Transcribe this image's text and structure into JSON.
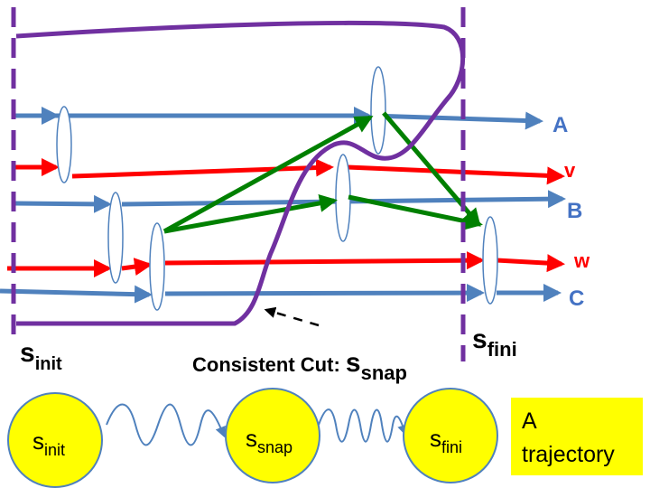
{
  "labels": {
    "process_a": "A",
    "process_b": "B",
    "process_c": "C",
    "var_v": "v",
    "var_w": "w",
    "s_init_base": "s",
    "s_init_sub": "init",
    "s_fini_base": "s",
    "s_fini_sub": "fini",
    "cut_caption": "Consistent Cut: ",
    "cut_base": "s",
    "cut_sub": "snap"
  },
  "trajectory": {
    "states": [
      {
        "base": "s",
        "sub": "init"
      },
      {
        "base": "s",
        "sub": "snap"
      },
      {
        "base": "s",
        "sub": "fini"
      }
    ],
    "box_line1": "A",
    "box_line2": "trajectory"
  },
  "colors": {
    "process_line": "#4F81BD",
    "variable_line": "#FF0000",
    "message": "#008000",
    "cut": "#7030A0",
    "label_blue": "#4472C4",
    "label_red": "#FF0000",
    "state_fill": "#FFFF00",
    "state_stroke": "#4F81BD"
  }
}
